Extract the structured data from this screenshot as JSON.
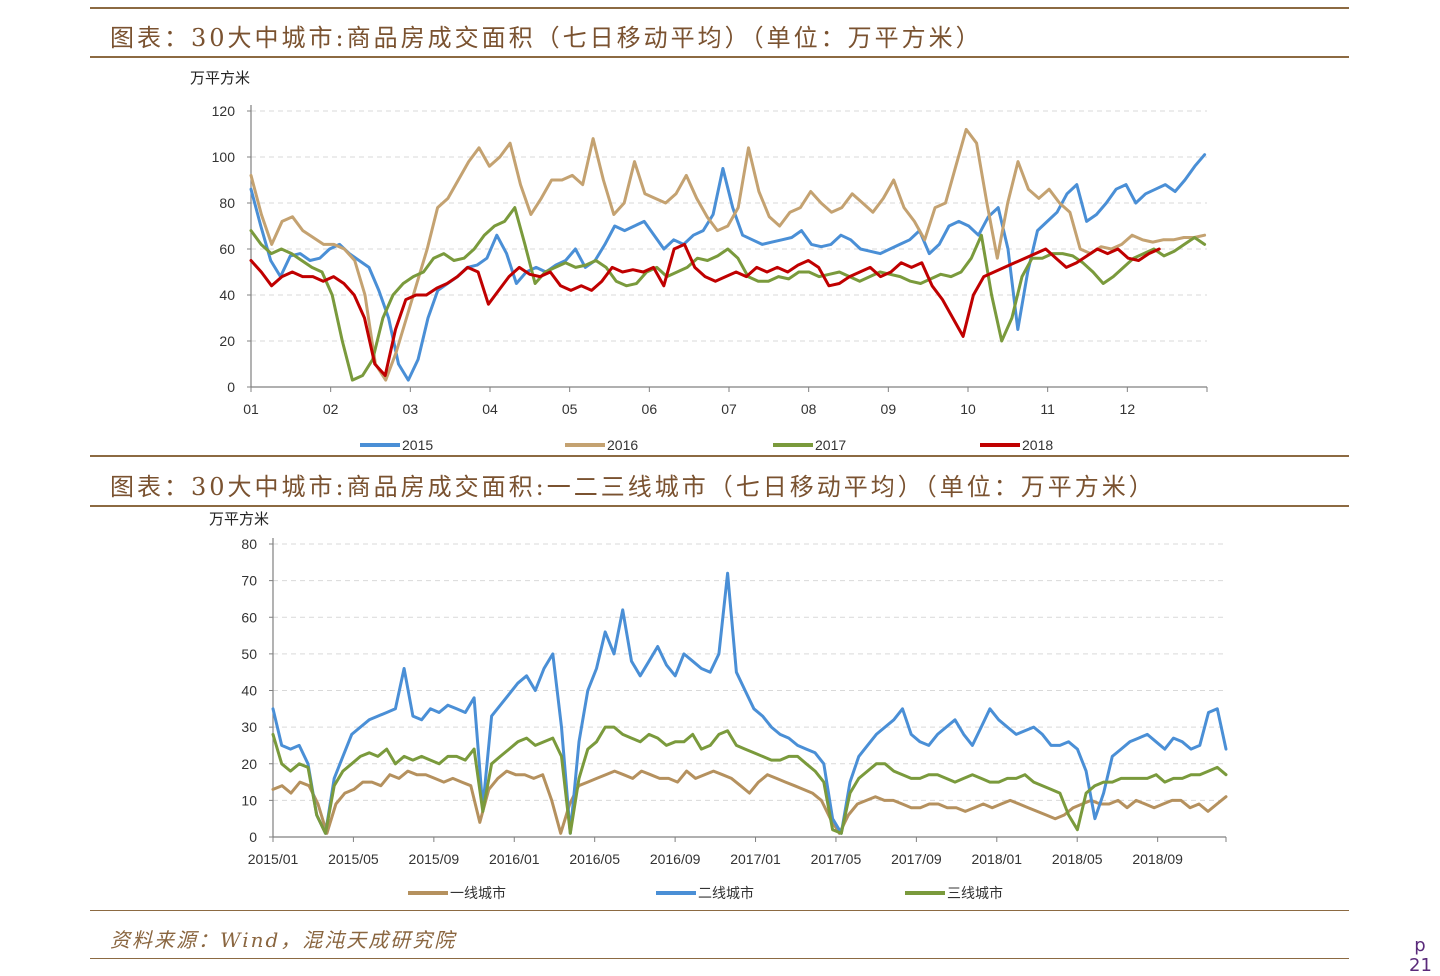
{
  "page": {
    "source": "资料来源：Wind，混沌天成研究院",
    "page_num_top": "p",
    "page_num_bottom": "21"
  },
  "chart_data": [
    {
      "type": "line",
      "title": "图表：30大中城市:商品房成交面积（七日移动平均）（单位：万平方米）",
      "ylabel": "万平方米",
      "ylim": [
        0,
        120
      ],
      "yticks": [
        0,
        20,
        40,
        60,
        80,
        100,
        120
      ],
      "xlim": [
        1,
        13
      ],
      "xticks": [
        1,
        2,
        3,
        4,
        5,
        6,
        7,
        8,
        9,
        10,
        11,
        12
      ],
      "xtick_labels": [
        "01",
        "02",
        "03",
        "04",
        "05",
        "06",
        "07",
        "08",
        "09",
        "10",
        "11",
        "12"
      ],
      "grid": "horizontal dashed",
      "legend": "bottom",
      "series": [
        {
          "name": "2015",
          "color": "#4a8fd6",
          "x_start": 1,
          "x_end": 12.97,
          "values": [
            86,
            70,
            55,
            48,
            57,
            58,
            55,
            56,
            60,
            62,
            58,
            55,
            52,
            42,
            30,
            10,
            3,
            12,
            30,
            42,
            45,
            48,
            52,
            53,
            56,
            66,
            58,
            45,
            50,
            52,
            50,
            53,
            55,
            60,
            52,
            55,
            62,
            70,
            68,
            70,
            72,
            66,
            60,
            64,
            62,
            66,
            68,
            75,
            95,
            78,
            66,
            64,
            62,
            63,
            64,
            65,
            68,
            62,
            61,
            62,
            66,
            64,
            60,
            59,
            58,
            60,
            62,
            64,
            68,
            58,
            62,
            70,
            72,
            70,
            66,
            74,
            78,
            60,
            25,
            50,
            68,
            72,
            76,
            84,
            88,
            72,
            75,
            80,
            86,
            88,
            80,
            84,
            86,
            88,
            85,
            90,
            96,
            101
          ]
        },
        {
          "name": "2016",
          "color": "#c4a271",
          "x_start": 1,
          "x_end": 12.97,
          "values": [
            92,
            75,
            62,
            72,
            74,
            68,
            65,
            62,
            62,
            60,
            55,
            40,
            10,
            3,
            15,
            30,
            45,
            60,
            78,
            82,
            90,
            98,
            104,
            96,
            100,
            106,
            88,
            75,
            82,
            90,
            90,
            92,
            88,
            108,
            90,
            75,
            80,
            98,
            84,
            82,
            80,
            84,
            92,
            82,
            74,
            68,
            70,
            78,
            104,
            85,
            74,
            70,
            76,
            78,
            85,
            80,
            76,
            78,
            84,
            80,
            76,
            82,
            90,
            78,
            72,
            64,
            78,
            80,
            96,
            112,
            106,
            80,
            56,
            80,
            98,
            86,
            82,
            86,
            80,
            76,
            60,
            58,
            61,
            60,
            62,
            66,
            64,
            63,
            64,
            64,
            65,
            65,
            66
          ]
        },
        {
          "name": "2017",
          "color": "#7a9a3c",
          "x_start": 1,
          "x_end": 12.97,
          "values": [
            68,
            62,
            58,
            60,
            58,
            55,
            52,
            50,
            40,
            20,
            3,
            5,
            12,
            30,
            40,
            45,
            48,
            50,
            56,
            58,
            55,
            56,
            60,
            66,
            70,
            72,
            78,
            62,
            45,
            50,
            52,
            54,
            52,
            53,
            55,
            52,
            46,
            44,
            45,
            50,
            52,
            48,
            50,
            52,
            56,
            55,
            57,
            60,
            56,
            48,
            46,
            46,
            48,
            47,
            50,
            50,
            48,
            49,
            50,
            48,
            46,
            48,
            50,
            49,
            48,
            46,
            45,
            47,
            49,
            48,
            50,
            56,
            66,
            40,
            20,
            30,
            48,
            56,
            56,
            58,
            58,
            57,
            54,
            50,
            45,
            48,
            52,
            56,
            58,
            60,
            57,
            59,
            62,
            65,
            62
          ]
        },
        {
          "name": "2018",
          "color": "#c00000",
          "x_start": 1,
          "x_end": 12.4,
          "values": [
            55,
            50,
            44,
            48,
            50,
            48,
            48,
            46,
            48,
            45,
            40,
            30,
            10,
            5,
            25,
            38,
            40,
            40,
            43,
            45,
            48,
            52,
            50,
            36,
            42,
            48,
            52,
            49,
            48,
            50,
            44,
            42,
            44,
            42,
            46,
            52,
            50,
            51,
            50,
            52,
            44,
            60,
            62,
            52,
            48,
            46,
            48,
            50,
            48,
            52,
            50,
            52,
            50,
            53,
            55,
            52,
            44,
            45,
            48,
            50,
            52,
            48,
            50,
            54,
            52,
            54,
            44,
            38,
            30,
            22,
            40,
            48,
            50,
            52,
            54,
            56,
            58,
            60,
            56,
            52,
            54,
            57,
            60,
            58,
            60,
            56,
            55,
            58,
            60
          ]
        }
      ]
    },
    {
      "type": "line",
      "title": "图表：30大中城市:商品房成交面积:一二三线城市（七日移动平均）（单位：万平方米）",
      "ylabel": "万平方米",
      "ylim": [
        0,
        80
      ],
      "yticks": [
        0,
        10,
        20,
        30,
        40,
        50,
        60,
        70,
        80
      ],
      "xlim": [
        2015.0,
        2018.95
      ],
      "xticks": [
        2015.0,
        2015.3333,
        2015.6667,
        2016.0,
        2016.3333,
        2016.6667,
        2017.0,
        2017.3333,
        2017.6667,
        2018.0,
        2018.3333,
        2018.6667
      ],
      "xtick_labels": [
        "2015/01",
        "2015/05",
        "2015/09",
        "2016/01",
        "2016/05",
        "2016/09",
        "2017/01",
        "2017/05",
        "2017/09",
        "2018/01",
        "2018/05",
        "2018/09"
      ],
      "grid": "horizontal dashed",
      "legend": "bottom",
      "series": [
        {
          "name": "一线城市",
          "color": "#b5915e",
          "x_start": 2015.0,
          "x_end": 2018.95,
          "values": [
            13,
            14,
            12,
            15,
            14,
            9,
            1,
            9,
            12,
            13,
            15,
            15,
            14,
            17,
            16,
            18,
            17,
            17,
            16,
            15,
            16,
            15,
            14,
            4,
            13,
            16,
            18,
            17,
            17,
            16,
            17,
            10,
            1,
            9,
            14,
            15,
            16,
            17,
            18,
            17,
            16,
            18,
            17,
            16,
            16,
            15,
            18,
            16,
            17,
            18,
            17,
            16,
            14,
            12,
            15,
            17,
            16,
            15,
            14,
            13,
            12,
            10,
            5,
            1,
            6,
            9,
            10,
            11,
            10,
            10,
            9,
            8,
            8,
            9,
            9,
            8,
            8,
            7,
            8,
            9,
            8,
            9,
            10,
            9,
            8,
            7,
            6,
            5,
            6,
            8,
            9,
            10,
            9,
            9,
            10,
            8,
            10,
            9,
            8,
            9,
            10,
            10,
            8,
            9,
            7,
            9,
            11
          ]
        },
        {
          "name": "二线城市",
          "color": "#4a8fd6",
          "x_start": 2015.0,
          "x_end": 2018.95,
          "values": [
            35,
            25,
            24,
            25,
            20,
            6,
            1,
            16,
            22,
            28,
            30,
            32,
            33,
            34,
            35,
            46,
            33,
            32,
            35,
            34,
            36,
            35,
            34,
            38,
            8,
            33,
            36,
            39,
            42,
            44,
            40,
            46,
            50,
            30,
            1,
            26,
            40,
            46,
            56,
            50,
            62,
            48,
            44,
            48,
            52,
            47,
            44,
            50,
            48,
            46,
            45,
            50,
            72,
            45,
            40,
            35,
            33,
            30,
            28,
            27,
            25,
            24,
            23,
            20,
            5,
            1,
            15,
            22,
            25,
            28,
            30,
            32,
            35,
            28,
            26,
            25,
            28,
            30,
            32,
            28,
            25,
            30,
            35,
            32,
            30,
            28,
            29,
            30,
            28,
            25,
            25,
            26,
            24,
            18,
            5,
            12,
            22,
            24,
            26,
            27,
            28,
            26,
            24,
            27,
            26,
            24,
            25,
            34,
            35,
            24
          ]
        },
        {
          "name": "三线城市",
          "color": "#7a9a3c",
          "x_start": 2015.0,
          "x_end": 2018.95,
          "values": [
            28,
            20,
            18,
            20,
            19,
            6,
            1,
            14,
            18,
            20,
            22,
            23,
            22,
            24,
            20,
            22,
            21,
            22,
            21,
            20,
            22,
            22,
            21,
            24,
            7,
            20,
            22,
            24,
            26,
            27,
            25,
            26,
            27,
            22,
            1,
            16,
            24,
            26,
            30,
            30,
            28,
            27,
            26,
            28,
            27,
            25,
            26,
            26,
            28,
            24,
            25,
            28,
            29,
            25,
            24,
            23,
            22,
            21,
            21,
            22,
            22,
            20,
            18,
            15,
            2,
            1,
            12,
            16,
            18,
            20,
            20,
            18,
            17,
            16,
            16,
            17,
            17,
            16,
            15,
            16,
            17,
            16,
            15,
            15,
            16,
            16,
            17,
            15,
            14,
            13,
            12,
            6,
            2,
            12,
            14,
            15,
            15,
            16,
            16,
            16,
            16,
            17,
            15,
            16,
            16,
            17,
            17,
            18,
            19,
            17
          ]
        }
      ]
    }
  ]
}
